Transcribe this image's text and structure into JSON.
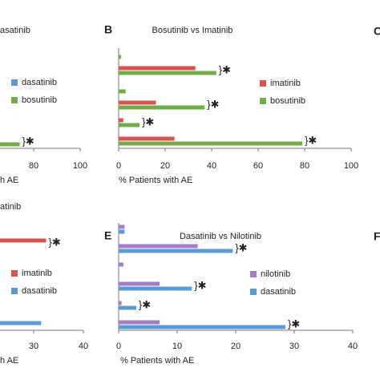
{
  "chart_data": [
    {
      "type": "bar",
      "orientation": "horizontal",
      "title": "asatinib",
      "xlabel": "h AE",
      "categories": [
        null
      ],
      "series": [
        {
          "name": "dasatinib",
          "color": "#5b9bd5",
          "values": [
            null
          ]
        },
        {
          "name": "bosutinib",
          "color": "#70ad47",
          "values": [
            74
          ]
        }
      ],
      "significant": [
        true
      ],
      "annotation": "}✱",
      "xlim": [
        0,
        100
      ],
      "xticks": [
        80,
        100
      ]
    },
    {
      "type": "bar",
      "orientation": "horizontal",
      "panel_label": "B",
      "title": "Bosutinib vs Imatinib",
      "xlabel": "% Patients with AE",
      "categories": [
        null,
        null,
        null,
        null,
        null,
        null
      ],
      "series": [
        {
          "name": "imatinib",
          "color": "#d9534f",
          "values": [
            0,
            33,
            0,
            16,
            2,
            24
          ]
        },
        {
          "name": "bosutinib",
          "color": "#70ad47",
          "values": [
            1,
            42,
            3,
            37,
            9,
            79
          ]
        }
      ],
      "significant": [
        false,
        true,
        false,
        true,
        true,
        true
      ],
      "annotation": "}✱",
      "xlim": [
        0,
        100
      ],
      "xticks": [
        0,
        20,
        40,
        60,
        80,
        100
      ]
    },
    {
      "type": "bar",
      "orientation": "horizontal",
      "title": "atinib",
      "xlabel": "h AE",
      "categories": [
        null,
        null
      ],
      "series": [
        {
          "name": "imatinib",
          "color": "#d9534f",
          "values": [
            32.5,
            null
          ]
        },
        {
          "name": "dasatinib",
          "color": "#5b9bd5",
          "values": [
            null,
            31.5
          ]
        }
      ],
      "significant": [
        true,
        false
      ],
      "annotation": "}✱",
      "xlim": [
        0,
        40
      ],
      "xticks": [
        30,
        40
      ]
    },
    {
      "type": "bar",
      "orientation": "horizontal",
      "panel_label": "E",
      "title": "Dasatinib vs Nilotinib",
      "xlabel": "% Patients with AE",
      "categories": [
        null,
        null,
        null,
        null,
        null,
        null
      ],
      "series": [
        {
          "name": "nilotinib",
          "color": "#a57cc7",
          "values": [
            1,
            13.5,
            0.8,
            7,
            0.5,
            7
          ]
        },
        {
          "name": "dasatinib",
          "color": "#5b9bd5",
          "values": [
            1,
            19.5,
            0,
            12.5,
            3,
            28.5
          ]
        }
      ],
      "significant": [
        false,
        true,
        false,
        true,
        true,
        true
      ],
      "annotation": "}✱",
      "xlim": [
        0,
        40
      ],
      "xticks": [
        0,
        10,
        20,
        30,
        40
      ]
    },
    {
      "type": "none",
      "panel_label": "C"
    },
    {
      "type": "none",
      "panel_label": "F"
    }
  ]
}
